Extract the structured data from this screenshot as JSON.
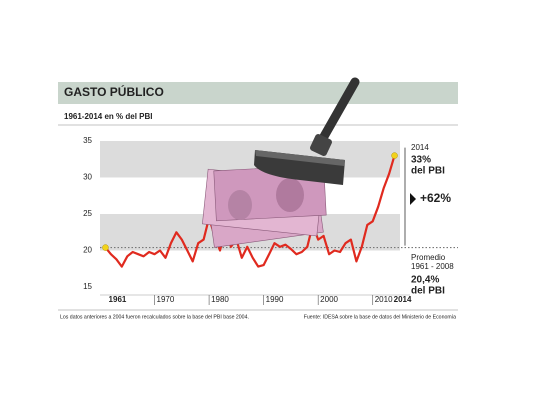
{
  "chart_data": {
    "type": "line",
    "title": "GASTO PÚBLICO",
    "subtitle": "1961-2014 en % del PBI",
    "x": [
      1961,
      1962,
      1963,
      1964,
      1965,
      1966,
      1967,
      1968,
      1969,
      1970,
      1971,
      1972,
      1973,
      1974,
      1975,
      1976,
      1977,
      1978,
      1979,
      1980,
      1981,
      1982,
      1983,
      1984,
      1985,
      1986,
      1987,
      1988,
      1989,
      1990,
      1991,
      1992,
      1993,
      1994,
      1995,
      1996,
      1997,
      1998,
      1999,
      2000,
      2001,
      2002,
      2003,
      2004,
      2005,
      2006,
      2007,
      2008,
      2009,
      2010,
      2011,
      2012,
      2013,
      2014
    ],
    "values": [
      20.4,
      19.5,
      18.8,
      17.8,
      19.2,
      19.8,
      19.5,
      19.2,
      19.8,
      19.5,
      20.0,
      19.0,
      21.0,
      22.5,
      21.5,
      20.0,
      18.5,
      21.0,
      21.5,
      24.5,
      22.0,
      20.0,
      23.0,
      20.5,
      21.5,
      19.0,
      20.5,
      19.0,
      17.8,
      18.0,
      19.5,
      21.0,
      20.5,
      20.8,
      20.2,
      19.5,
      19.8,
      20.5,
      23.5,
      21.5,
      22.0,
      19.5,
      20.0,
      19.8,
      21.0,
      21.5,
      18.5,
      20.5,
      23.5,
      24.0,
      26.0,
      28.5,
      30.5,
      33.0
    ],
    "color": "#e02a1f",
    "xlim": [
      1960,
      2015
    ],
    "xticks": [
      1961,
      1970,
      1980,
      1990,
      2000,
      2010,
      2014
    ],
    "ylim": [
      15,
      35
    ],
    "yticks": [
      15,
      20,
      25,
      30,
      35
    ],
    "bands": true,
    "average": {
      "value": 20.4,
      "label": "20,4%"
    },
    "annotations": {
      "end_year": "2014",
      "end_value": "33%",
      "end_unit": "del PBI",
      "change": "+62%",
      "avg_label": "Promedio",
      "avg_period": "1961 - 2008",
      "avg_unit": "del PBI"
    },
    "notes": [
      "Los datos anteriores a 2004 fueron recalculados sobre la base del PBI base 2004.",
      "Fuente: IDESA sobre la base de datos del Ministerio de Economía"
    ]
  }
}
